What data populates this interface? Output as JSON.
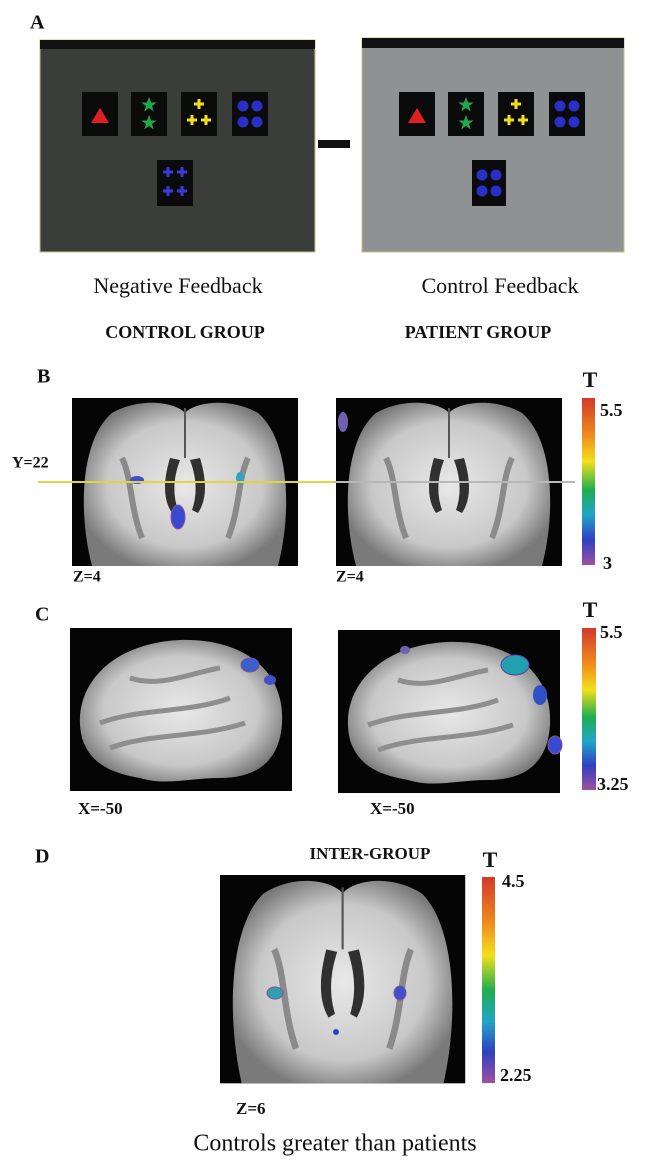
{
  "panel_a": {
    "label": "A",
    "captions": [
      "Negative Feedback",
      "Control Feedback"
    ]
  },
  "panel_b": {
    "label": "B",
    "group_titles": [
      "CONTROL GROUP",
      "PATIENT GROUP"
    ],
    "line_label": "Y=22",
    "slice_labels": [
      "Z=4",
      "Z=4"
    ],
    "colorbar": {
      "title": "T",
      "max": "5.5",
      "min": "3"
    }
  },
  "panel_c": {
    "label": "C",
    "slice_labels": [
      "X=-50",
      "X=-50"
    ],
    "colorbar": {
      "title": "T",
      "max": "5.5",
      "min": "3.25"
    }
  },
  "panel_d": {
    "label": "D",
    "title": "INTER-GROUP",
    "slice_label": "Z=6",
    "colorbar": {
      "title": "T",
      "max": "4.5",
      "min": "2.25"
    },
    "caption": "Controls greater than patients"
  }
}
